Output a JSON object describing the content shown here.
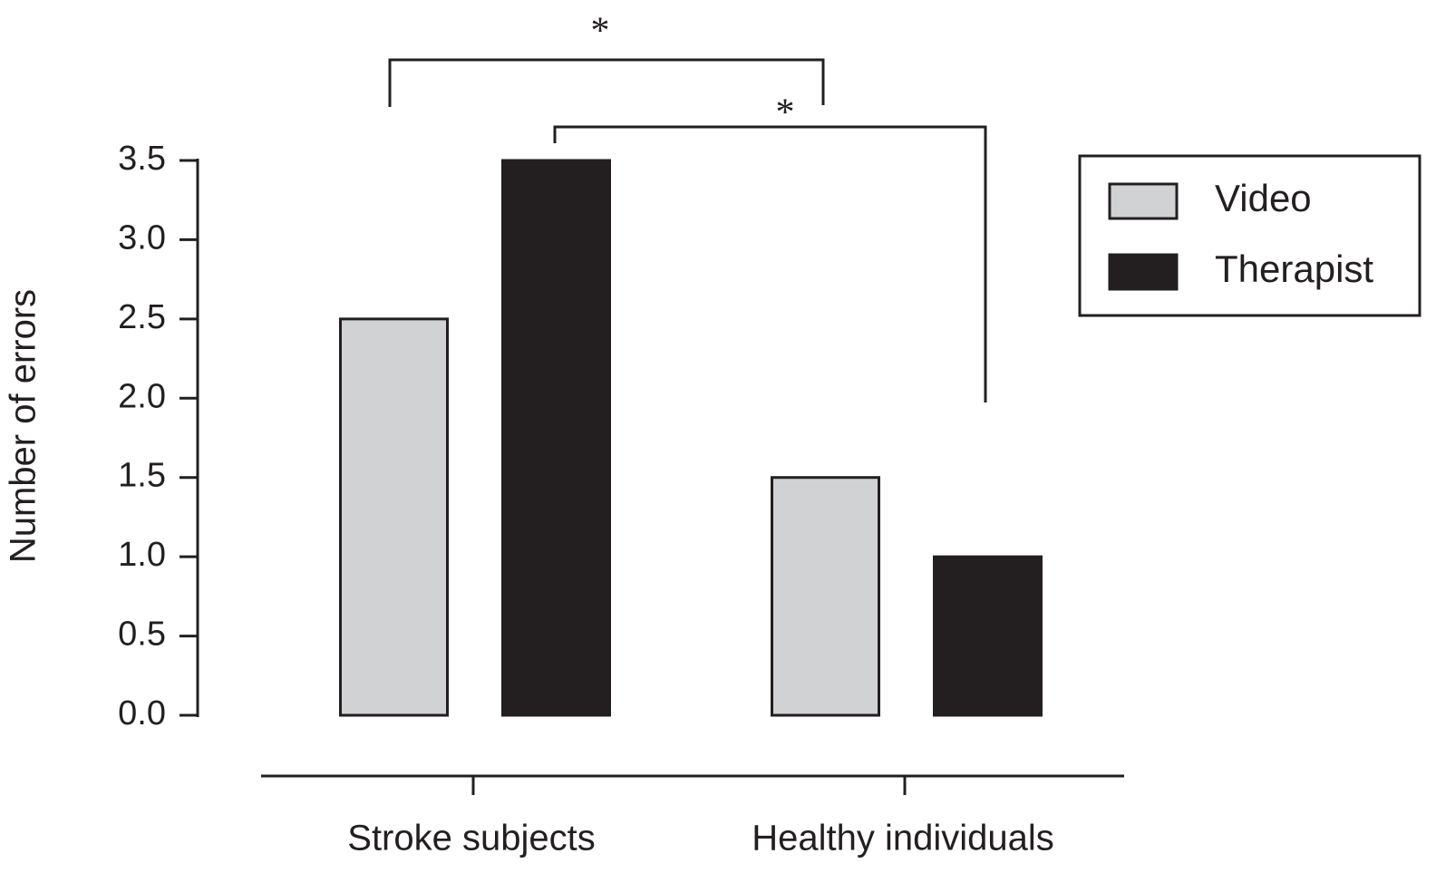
{
  "chart_data": {
    "type": "bar",
    "y_label": "Number of errors",
    "categories": [
      "Stroke subjects",
      "Healthy individuals"
    ],
    "series": [
      {
        "name": "Video",
        "color": "#d1d2d4",
        "values": [
          2.5,
          1.5
        ]
      },
      {
        "name": "Therapist",
        "color": "#231f20",
        "values": [
          3.5,
          1.0
        ]
      }
    ],
    "ylim": [
      0,
      3.5
    ],
    "yticks": [
      {
        "value": 0,
        "label": "0.0"
      },
      0.5,
      {
        "value": 1,
        "label": "1.0"
      },
      1.5,
      {
        "value": 2,
        "label": "2.0"
      },
      2.5,
      {
        "value": 3,
        "label": "3.0"
      },
      3.5
    ],
    "legend": "top-right",
    "annotations": [
      {
        "text": "*"
      },
      {
        "text": "*"
      }
    ]
  }
}
